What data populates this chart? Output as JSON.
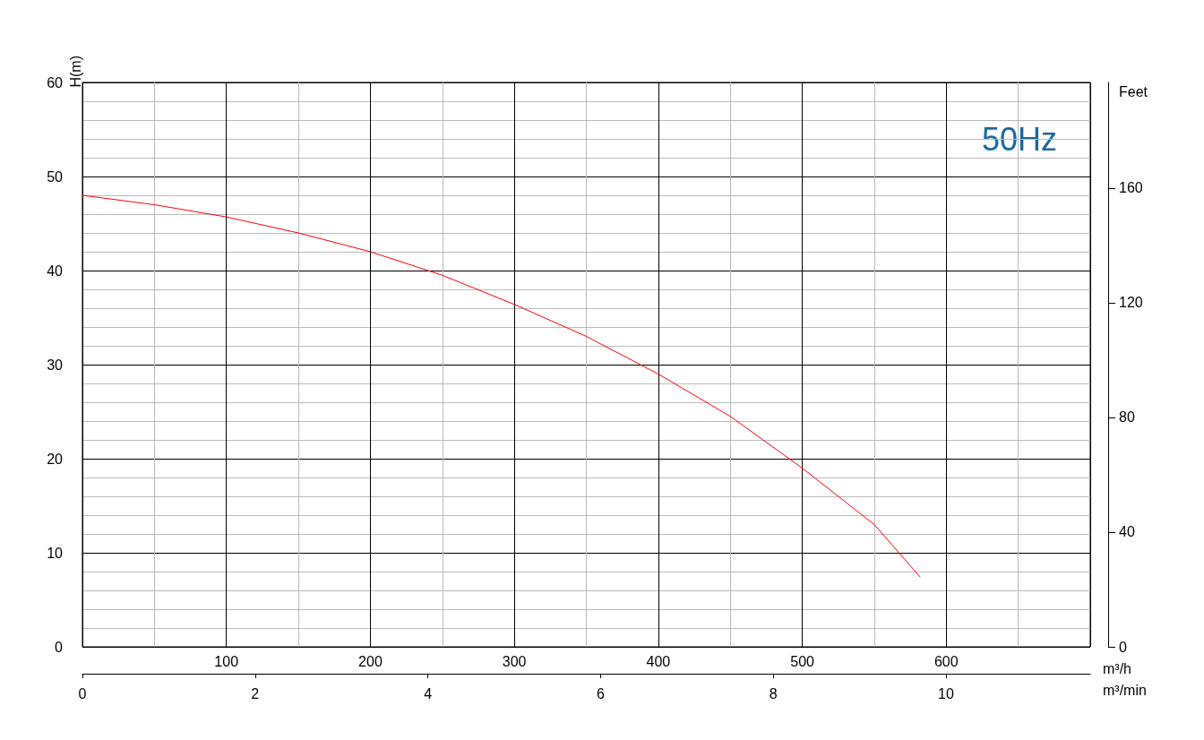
{
  "chart_data": {
    "type": "line",
    "xlabel": "m³/h",
    "x2label": "m³/min",
    "ylabel": "H(m)",
    "y2label": "Feet",
    "annotations": [
      "50Hz"
    ],
    "xlim": [
      0,
      700
    ],
    "xticks": [
      100,
      200,
      300,
      400,
      500,
      600
    ],
    "x2lim": [
      0,
      11.67
    ],
    "x2ticks": [
      0,
      2,
      4,
      6,
      8,
      10
    ],
    "ylim": [
      0,
      60
    ],
    "yticks": [
      0,
      10,
      20,
      30,
      40,
      50,
      60
    ],
    "y2lim": [
      0,
      196.85
    ],
    "y2ticks": [
      0,
      40,
      80,
      120,
      160
    ],
    "grid": true,
    "marker": "none",
    "line_style": "solid",
    "series": [
      {
        "color": "#ff0000",
        "x": [
          0,
          50,
          100,
          150,
          200,
          250,
          300,
          350,
          400,
          450,
          500,
          550,
          582
        ],
        "values": [
          48,
          47,
          45.7,
          44,
          42,
          39.5,
          36.4,
          33,
          29,
          24.5,
          19,
          13,
          7.4
        ]
      }
    ]
  }
}
